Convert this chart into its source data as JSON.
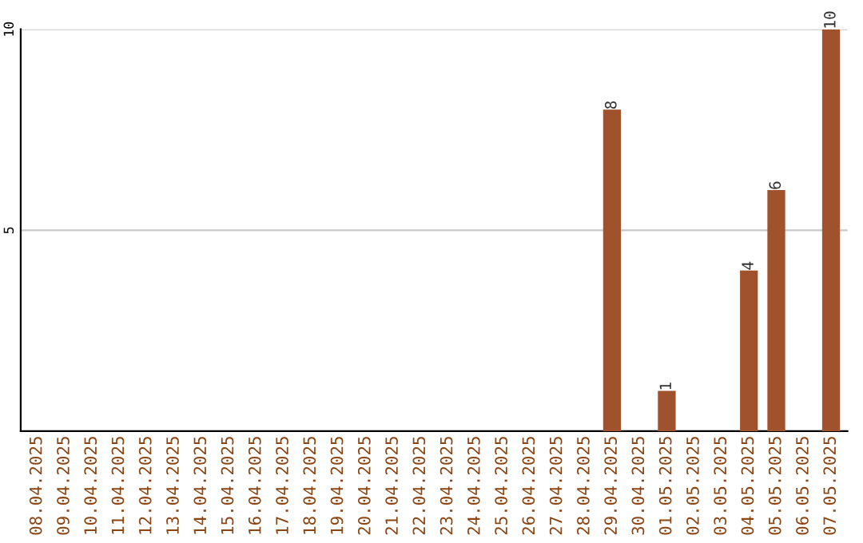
{
  "chart_data": {
    "type": "bar",
    "categories": [
      "08.04.2025",
      "09.04.2025",
      "10.04.2025",
      "11.04.2025",
      "12.04.2025",
      "13.04.2025",
      "14.04.2025",
      "15.04.2025",
      "16.04.2025",
      "17.04.2025",
      "18.04.2025",
      "19.04.2025",
      "20.04.2025",
      "21.04.2025",
      "22.04.2025",
      "23.04.2025",
      "24.04.2025",
      "25.04.2025",
      "26.04.2025",
      "27.04.2025",
      "28.04.2025",
      "29.04.2025",
      "30.04.2025",
      "01.05.2025",
      "02.05.2025",
      "03.05.2025",
      "04.05.2025",
      "05.05.2025",
      "06.05.2025",
      "07.05.2025"
    ],
    "values": [
      0,
      0,
      0,
      0,
      0,
      0,
      0,
      0,
      0,
      0,
      0,
      0,
      0,
      0,
      0,
      0,
      0,
      0,
      0,
      0,
      0,
      8,
      0,
      1,
      0,
      0,
      4,
      6,
      0,
      10
    ],
    "value_labels": [
      null,
      null,
      null,
      null,
      null,
      null,
      null,
      null,
      null,
      null,
      null,
      null,
      null,
      null,
      null,
      null,
      null,
      null,
      null,
      null,
      null,
      "8",
      null,
      "1",
      null,
      null,
      "4",
      "6",
      null,
      "10"
    ],
    "color": "#a0522d",
    "ylim": [
      0,
      10
    ],
    "yticks": [
      5,
      10
    ],
    "grid": "y"
  }
}
